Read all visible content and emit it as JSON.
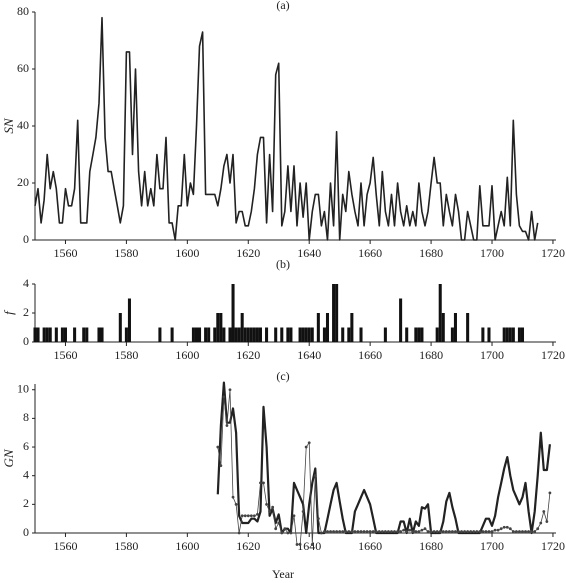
{
  "chart_data": [
    {
      "type": "line",
      "title": "(a)",
      "ylabel": "SN",
      "x": [
        1550,
        1551,
        1552,
        1553,
        1554,
        1555,
        1556,
        1557,
        1558,
        1559,
        1560,
        1561,
        1562,
        1563,
        1564,
        1565,
        1566,
        1567,
        1568,
        1569,
        1570,
        1571,
        1572,
        1573,
        1574,
        1575,
        1576,
        1577,
        1578,
        1579,
        1580,
        1581,
        1582,
        1583,
        1584,
        1585,
        1586,
        1587,
        1588,
        1589,
        1590,
        1591,
        1592,
        1593,
        1594,
        1595,
        1596,
        1597,
        1598,
        1599,
        1600,
        1601,
        1602,
        1603,
        1604,
        1605,
        1606,
        1607,
        1608,
        1609,
        1610,
        1611,
        1612,
        1613,
        1614,
        1615,
        1616,
        1617,
        1618,
        1619,
        1620,
        1621,
        1622,
        1623,
        1624,
        1625,
        1626,
        1627,
        1628,
        1629,
        1630,
        1631,
        1632,
        1633,
        1634,
        1635,
        1636,
        1637,
        1638,
        1639,
        1640,
        1641,
        1642,
        1643,
        1644,
        1645,
        1646,
        1647,
        1648,
        1649,
        1650,
        1651,
        1652,
        1653,
        1654,
        1655,
        1656,
        1657,
        1658,
        1659,
        1660,
        1661,
        1662,
        1663,
        1664,
        1665,
        1666,
        1667,
        1668,
        1669,
        1670,
        1671,
        1672,
        1673,
        1674,
        1675,
        1676,
        1677,
        1678,
        1679,
        1680,
        1681,
        1682,
        1683,
        1684,
        1685,
        1686,
        1687,
        1688,
        1689,
        1690,
        1691,
        1692,
        1693,
        1694,
        1695,
        1696,
        1697,
        1698,
        1699,
        1700,
        1701,
        1702,
        1703,
        1704,
        1705,
        1706,
        1707,
        1708,
        1709,
        1710,
        1711,
        1712,
        1713,
        1714,
        1715
      ],
      "series": [
        {
          "color": "#222222",
          "width": 1.6,
          "values": [
            12,
            18,
            6,
            14,
            30,
            18,
            24,
            18,
            6,
            6,
            18,
            12,
            12,
            18,
            42,
            6,
            6,
            6,
            24,
            30,
            36,
            48,
            78,
            36,
            24,
            24,
            18,
            12,
            6,
            12,
            66,
            66,
            30,
            60,
            24,
            12,
            24,
            12,
            18,
            12,
            30,
            18,
            18,
            36,
            6,
            6,
            0,
            12,
            12,
            30,
            12,
            20,
            16,
            40,
            68,
            73,
            16,
            16,
            16,
            16,
            12,
            18,
            26,
            30,
            20,
            30,
            6,
            10,
            10,
            5,
            5,
            10,
            18,
            30,
            36,
            36,
            6,
            30,
            10,
            58,
            62,
            5,
            10,
            26,
            10,
            26,
            5,
            20,
            8,
            20,
            0,
            10,
            16,
            16,
            5,
            10,
            0,
            20,
            5,
            38,
            0,
            16,
            10,
            24,
            16,
            10,
            5,
            20,
            5,
            16,
            20,
            29,
            16,
            5,
            24,
            10,
            5,
            16,
            5,
            20,
            10,
            5,
            12,
            5,
            10,
            5,
            20,
            10,
            5,
            10,
            20,
            29,
            20,
            20,
            5,
            16,
            10,
            5,
            16,
            10,
            0,
            0,
            10,
            5,
            0,
            0,
            19,
            5,
            5,
            5,
            19,
            0,
            5,
            10,
            5,
            22,
            5,
            42,
            16,
            5,
            3,
            3,
            0,
            10,
            0,
            6
          ]
        }
      ],
      "xlim": [
        1550,
        1721
      ],
      "ylim": [
        0,
        80
      ],
      "xticks": [
        1560,
        1580,
        1600,
        1620,
        1640,
        1660,
        1680,
        1700,
        1720
      ],
      "yticks": [
        0,
        20,
        40,
        60,
        80
      ]
    },
    {
      "type": "bar",
      "title": "(b)",
      "ylabel": "f",
      "color": "#111111",
      "x": [
        1550,
        1551,
        1553,
        1554,
        1555,
        1557,
        1559,
        1560,
        1563,
        1566,
        1567,
        1571,
        1572,
        1578,
        1580,
        1581,
        1591,
        1595,
        1602,
        1603,
        1604,
        1606,
        1607,
        1609,
        1610,
        1611,
        1612,
        1614,
        1615,
        1616,
        1617,
        1618,
        1619,
        1620,
        1621,
        1622,
        1623,
        1624,
        1626,
        1629,
        1631,
        1633,
        1634,
        1637,
        1638,
        1639,
        1640,
        1641,
        1643,
        1645,
        1646,
        1648,
        1649,
        1651,
        1653,
        1654,
        1657,
        1665,
        1670,
        1672,
        1675,
        1676,
        1677,
        1682,
        1683,
        1684,
        1687,
        1688,
        1692,
        1697,
        1699,
        1704,
        1705,
        1706,
        1707,
        1709,
        1710
      ],
      "values": [
        1,
        1,
        1,
        1,
        1,
        1,
        1,
        1,
        1,
        1,
        1,
        1,
        1,
        2,
        1,
        3,
        1,
        1,
        1,
        1,
        1,
        1,
        1,
        1,
        2,
        2,
        1,
        1,
        4,
        1,
        1,
        2,
        1,
        1,
        1,
        1,
        1,
        1,
        1,
        1,
        1,
        1,
        1,
        1,
        1,
        1,
        1,
        1,
        2,
        1,
        2,
        4,
        4,
        1,
        1,
        2,
        1,
        1,
        3,
        1,
        1,
        1,
        1,
        1,
        4,
        2,
        1,
        2,
        2,
        1,
        1,
        1,
        1,
        1,
        1,
        1,
        1
      ],
      "xlim": [
        1550,
        1721
      ],
      "ylim": [
        0,
        4
      ],
      "xticks": [
        1560,
        1580,
        1600,
        1620,
        1640,
        1660,
        1680,
        1700,
        1720
      ],
      "yticks": [
        0,
        2,
        4
      ]
    },
    {
      "type": "line",
      "title": "(c)",
      "ylabel": "GN",
      "xlabel": "Year",
      "x": [
        1610,
        1611,
        1612,
        1613,
        1614,
        1615,
        1616,
        1617,
        1618,
        1619,
        1620,
        1621,
        1622,
        1623,
        1624,
        1625,
        1626,
        1627,
        1628,
        1629,
        1630,
        1631,
        1632,
        1633,
        1634,
        1635,
        1636,
        1637,
        1638,
        1639,
        1640,
        1641,
        1642,
        1643,
        1644,
        1645,
        1646,
        1647,
        1648,
        1649,
        1650,
        1651,
        1652,
        1653,
        1654,
        1655,
        1656,
        1657,
        1658,
        1659,
        1660,
        1661,
        1662,
        1663,
        1664,
        1665,
        1666,
        1667,
        1668,
        1669,
        1670,
        1671,
        1672,
        1673,
        1674,
        1675,
        1676,
        1677,
        1678,
        1679,
        1680,
        1681,
        1682,
        1683,
        1684,
        1685,
        1686,
        1687,
        1688,
        1689,
        1690,
        1691,
        1692,
        1693,
        1694,
        1695,
        1696,
        1697,
        1698,
        1699,
        1700,
        1701,
        1702,
        1703,
        1704,
        1705,
        1706,
        1707,
        1708,
        1709,
        1710,
        1711,
        1712,
        1713,
        1714,
        1715,
        1716,
        1717,
        1718,
        1719
      ],
      "series": [
        {
          "color": "#222222",
          "width": 2.2,
          "values": [
            2.7,
            7.5,
            10.5,
            7.7,
            7.7,
            8.7,
            7,
            1.2,
            0.7,
            0.7,
            0.7,
            1,
            1,
            0.8,
            1.5,
            8.8,
            6,
            1.2,
            1.7,
            0.7,
            1.3,
            0,
            0.3,
            0.3,
            0,
            3.5,
            3,
            2.5,
            2,
            0,
            2,
            3.5,
            4.5,
            0,
            0,
            0,
            1,
            2,
            3,
            3.5,
            2.2,
            1,
            0,
            0,
            0,
            1.5,
            2,
            2.5,
            3,
            2.5,
            2,
            1,
            0,
            0,
            0,
            0,
            0,
            0,
            0,
            0,
            0.8,
            0.8,
            0,
            1,
            0,
            0.8,
            0.5,
            1.8,
            1.7,
            2,
            0,
            0,
            0,
            0,
            0.8,
            2.2,
            2.8,
            1.8,
            1,
            0,
            0,
            0,
            0,
            0,
            0,
            0,
            0,
            0.5,
            1,
            1,
            0.5,
            1.2,
            2.5,
            3.5,
            4.5,
            5.3,
            4,
            3,
            2.5,
            2,
            2.5,
            3.5,
            1.5,
            0,
            1.5,
            4,
            7,
            4.4,
            4.4,
            6.2
          ]
        },
        {
          "color": "#444444",
          "width": 0.8,
          "markers": true,
          "values": [
            6,
            4.7,
            9.5,
            7.5,
            10,
            2.5,
            2,
            0,
            1.2,
            1.2,
            1.2,
            1.2,
            1.2,
            1.3,
            3.5,
            3.5,
            2,
            1.5,
            1.8,
            0.3,
            0.7,
            0,
            0.3,
            0,
            0,
            1.2,
            -0.8,
            -0.8,
            1.5,
            6,
            6.3,
            -0.8,
            4,
            1,
            0,
            0.1,
            0.1,
            0.1,
            0.1,
            0.1,
            0.1,
            0.1,
            0.1,
            0.1,
            0.1,
            0.1,
            0.1,
            0.1,
            0.1,
            0.1,
            0.1,
            0.1,
            0.1,
            0.1,
            0.1,
            0.1,
            0.1,
            0.1,
            0.1,
            0.1,
            0.1,
            0.2,
            0.1,
            0.2,
            0.1,
            0.1,
            0.1,
            0.2,
            0.3,
            0.1,
            0.1,
            0.1,
            0.1,
            0.1,
            0.1,
            0.1,
            0.1,
            0.1,
            0.1,
            0.1,
            0.1,
            0.1,
            0.1,
            0.1,
            0.1,
            0.1,
            0.1,
            0.1,
            0.1,
            0.1,
            0.1,
            0.2,
            0.2,
            0.3,
            0.4,
            0.4,
            0.3,
            0.1,
            0.1,
            0.1,
            0.1,
            0.1,
            0.1,
            0.1,
            0.1,
            0.3,
            0.7,
            1.5,
            0.8,
            2.8
          ]
        }
      ],
      "xlim": [
        1550,
        1721
      ],
      "ylim": [
        0,
        10.4
      ],
      "xticks": [
        1560,
        1580,
        1600,
        1620,
        1640,
        1660,
        1680,
        1700,
        1720
      ],
      "yticks": [
        0,
        2,
        4,
        6,
        8,
        10
      ]
    }
  ]
}
